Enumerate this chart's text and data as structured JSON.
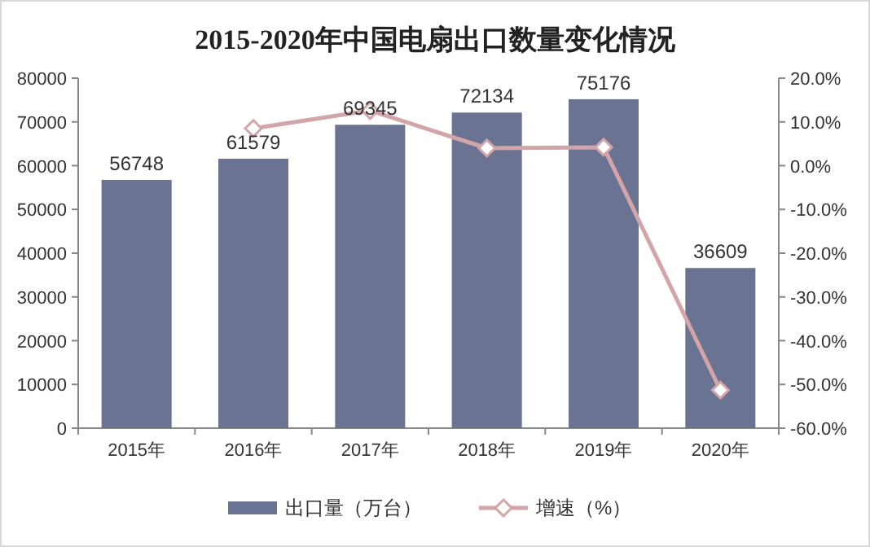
{
  "chart_data": {
    "type": "bar",
    "title": "2015-2020年中国电扇出口数量变化情况",
    "categories": [
      "2015年",
      "2016年",
      "2017年",
      "2018年",
      "2019年",
      "2020年"
    ],
    "series": [
      {
        "name": "出口量（万台）",
        "color": "#6b7393",
        "values": [
          56748,
          61579,
          69345,
          72134,
          75176,
          36609
        ],
        "value_labels": [
          "56748",
          "61579",
          "69345",
          "72134",
          "75176",
          "36609"
        ]
      },
      {
        "name": "增速（%）",
        "type": "line",
        "axis": "y2",
        "color": "#d4a5a8",
        "marker": "diamond",
        "values": [
          null,
          8.5,
          12.6,
          4.0,
          4.2,
          -51.3
        ]
      }
    ],
    "ylim": [
      0,
      80000
    ],
    "yticks": [
      0,
      10000,
      20000,
      30000,
      40000,
      50000,
      60000,
      70000,
      80000
    ],
    "y2lim": [
      -60,
      20
    ],
    "y2ticks": [
      {
        "value": -60,
        "label": "-60.0%"
      },
      {
        "value": -50,
        "label": "-50.0%"
      },
      {
        "value": -40,
        "label": "-40.0%"
      },
      {
        "value": -30,
        "label": "-30.0%"
      },
      {
        "value": -20,
        "label": "-20.0%"
      },
      {
        "value": -10,
        "label": "-10.0%"
      },
      {
        "value": 0,
        "label": "0.0%"
      },
      {
        "value": 10,
        "label": "10.0%"
      },
      {
        "value": 20,
        "label": "20.0%"
      }
    ],
    "legend": "bottom"
  }
}
